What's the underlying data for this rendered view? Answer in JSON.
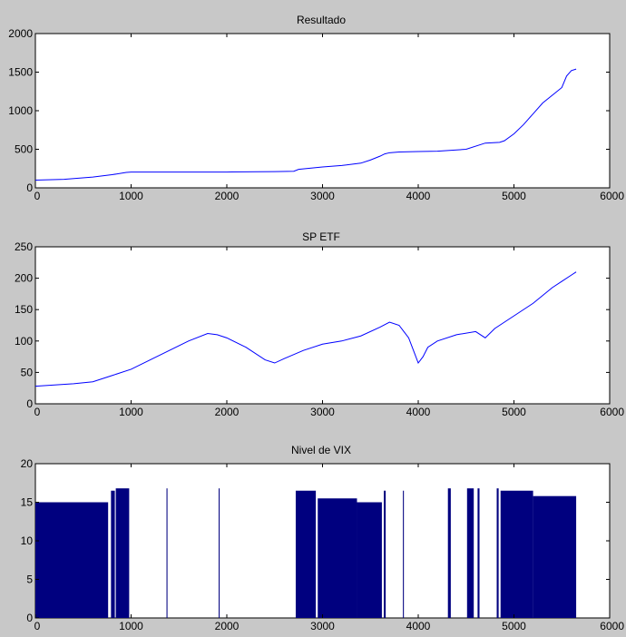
{
  "chart_data": [
    {
      "type": "line",
      "title": "Resultado",
      "xlim": [
        0,
        6000
      ],
      "ylim": [
        0,
        2000
      ],
      "xticks": [
        "0",
        "1000",
        "2000",
        "3000",
        "4000",
        "5000",
        "6000"
      ],
      "yticks": [
        "0",
        "500",
        "1000",
        "1500",
        "2000"
      ],
      "grid": false,
      "color": "#0000ff",
      "x": [
        0,
        300,
        600,
        800,
        950,
        1000,
        1500,
        2000,
        2500,
        2700,
        2750,
        3000,
        3200,
        3400,
        3500,
        3600,
        3650,
        3700,
        3800,
        4000,
        4200,
        4500,
        4700,
        4850,
        4900,
        5000,
        5100,
        5200,
        5300,
        5400,
        5500,
        5550,
        5600,
        5650
      ],
      "y": [
        100,
        110,
        140,
        170,
        200,
        205,
        205,
        205,
        210,
        215,
        240,
        270,
        290,
        320,
        360,
        410,
        440,
        455,
        465,
        470,
        475,
        500,
        580,
        590,
        610,
        700,
        820,
        960,
        1100,
        1200,
        1300,
        1450,
        1520,
        1540
      ]
    },
    {
      "type": "line",
      "title": "SP ETF",
      "xlim": [
        0,
        6000
      ],
      "ylim": [
        0,
        250
      ],
      "xticks": [
        "0",
        "1000",
        "2000",
        "3000",
        "4000",
        "5000",
        "6000"
      ],
      "yticks": [
        "0",
        "50",
        "100",
        "150",
        "200",
        "250"
      ],
      "grid": false,
      "color": "#0000ff",
      "x": [
        0,
        200,
        400,
        600,
        800,
        1000,
        1200,
        1400,
        1600,
        1800,
        1900,
        2000,
        2200,
        2400,
        2500,
        2600,
        2800,
        3000,
        3200,
        3400,
        3600,
        3700,
        3800,
        3850,
        3900,
        3950,
        4000,
        4050,
        4100,
        4200,
        4400,
        4600,
        4700,
        4800,
        5000,
        5200,
        5400,
        5500,
        5600,
        5650
      ],
      "y": [
        28,
        30,
        32,
        35,
        45,
        55,
        70,
        85,
        100,
        112,
        110,
        105,
        90,
        70,
        65,
        72,
        85,
        95,
        100,
        108,
        122,
        130,
        125,
        115,
        105,
        85,
        65,
        75,
        90,
        100,
        110,
        115,
        105,
        120,
        140,
        160,
        185,
        195,
        205,
        210
      ]
    },
    {
      "type": "bar",
      "title": "Nivel de VIX",
      "xlim": [
        0,
        6000
      ],
      "ylim": [
        0,
        20
      ],
      "xticks": [
        "0",
        "1000",
        "2000",
        "3000",
        "4000",
        "5000",
        "6000"
      ],
      "yticks": [
        "0",
        "5",
        "10",
        "15",
        "20"
      ],
      "grid": false,
      "color": "#00007f",
      "segments": [
        {
          "x0": 0,
          "x1": 760,
          "top": 15
        },
        {
          "x0": 790,
          "x1": 830,
          "top": 16.5
        },
        {
          "x0": 840,
          "x1": 980,
          "top": 16.8
        },
        {
          "x0": 1370,
          "x1": 1380,
          "top": 16.8
        },
        {
          "x0": 1915,
          "x1": 1925,
          "top": 16.8
        },
        {
          "x0": 2720,
          "x1": 2930,
          "top": 16.5
        },
        {
          "x0": 2950,
          "x1": 3360,
          "top": 15.5
        },
        {
          "x0": 3360,
          "x1": 3620,
          "top": 15
        },
        {
          "x0": 3640,
          "x1": 3660,
          "top": 16.5
        },
        {
          "x0": 3840,
          "x1": 3850,
          "top": 16.5
        },
        {
          "x0": 4310,
          "x1": 4340,
          "top": 16.8
        },
        {
          "x0": 4510,
          "x1": 4580,
          "top": 16.8
        },
        {
          "x0": 4620,
          "x1": 4640,
          "top": 16.8
        },
        {
          "x0": 4820,
          "x1": 4840,
          "top": 16.8
        },
        {
          "x0": 4860,
          "x1": 5200,
          "top": 16.5
        },
        {
          "x0": 5200,
          "x1": 5650,
          "top": 15.8
        }
      ]
    }
  ]
}
